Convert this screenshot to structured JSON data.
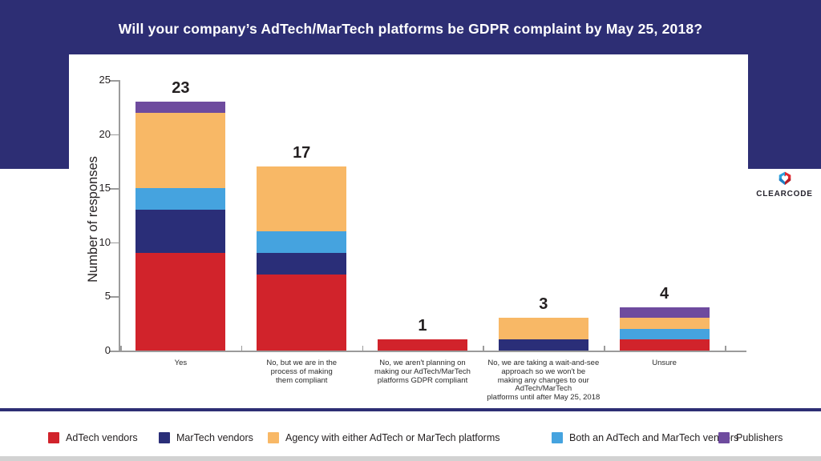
{
  "theme": {
    "band_color": "#2d2e74",
    "card_color": "#ffffff",
    "text_color": "#231f20",
    "axis_color": "#9b9b9b",
    "strip_color": "#d2d2d2"
  },
  "chart_data": {
    "type": "bar",
    "stacked": true,
    "title": "Will your company’s AdTech/MarTech platforms be GDPR complaint by May 25, 2018?",
    "xlabel": "",
    "ylabel": "Number of responses",
    "ylim": [
      0,
      25
    ],
    "yticks": [
      0,
      5,
      10,
      15,
      20,
      25
    ],
    "grid": false,
    "legend_position": "bottom",
    "categories": [
      "Yes",
      "No, but we are in the process of making them compliant",
      "No, we aren't planning on making our AdTech/MarTech platforms GDPR compliant",
      "No, we are taking a wait-and-see approach so we won't be making any changes to our AdTech/MarTech platforms until after May 25, 2018",
      "Unsure"
    ],
    "category_label_lines": [
      [
        "Yes"
      ],
      [
        "No, but we are in the",
        "process of making",
        "them compliant"
      ],
      [
        "No, we aren't planning on",
        "making our AdTech/MarTech",
        "platforms GDPR compliant"
      ],
      [
        "No, we are taking a wait-and-see",
        "approach so we won't be",
        "making any changes to our",
        "AdTech/MarTech",
        "platforms until after May 25, 2018"
      ],
      [
        "Unsure"
      ]
    ],
    "totals": [
      23,
      17,
      1,
      3,
      4
    ],
    "series": [
      {
        "name": "AdTech vendors",
        "color": "#d1232b",
        "values": [
          9,
          7,
          1,
          0,
          1
        ]
      },
      {
        "name": "MarTech vendors",
        "color": "#2a2e78",
        "values": [
          4,
          2,
          0,
          1,
          0
        ]
      },
      {
        "name": "Agency with either AdTech or MarTech platforms",
        "color": "#f8b866",
        "values": [
          7,
          6,
          0,
          2,
          1
        ]
      },
      {
        "name": "Both an AdTech and MarTech vendors",
        "color": "#45a3df",
        "values": [
          2,
          2,
          0,
          0,
          1
        ]
      },
      {
        "name": "Publishers",
        "color": "#6e4b9e",
        "values": [
          1,
          0,
          0,
          0,
          1
        ]
      }
    ],
    "stack_order_indices": [
      0,
      1,
      3,
      2,
      4
    ]
  },
  "logo": {
    "text": "CLEARCODE",
    "icon": "clearcode-heart-logo",
    "icon_colors": {
      "blue": "#2da0dc",
      "blue_dark": "#1e7fc4",
      "red": "#e0262e",
      "red_dark": "#b21f28"
    }
  }
}
